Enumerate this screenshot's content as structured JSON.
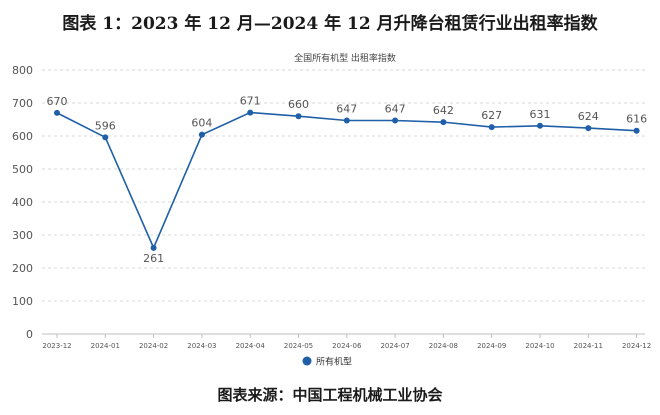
{
  "title": "图表 1：2023 年 12 月—2024 年 12 月升降台租赁行业出租率指数",
  "source": "图表来源：中国工程机械工业协会",
  "chart_data": {
    "type": "line",
    "title": "全国所有机型  出租率指数",
    "categories": [
      "2023-12",
      "2024-01",
      "2024-02",
      "2024-03",
      "2024-04",
      "2024-05",
      "2024-06",
      "2024-07",
      "2024-08",
      "2024-09",
      "2024-10",
      "2024-11",
      "2024-12"
    ],
    "series": [
      {
        "name": "所有机型",
        "values": [
          670,
          596,
          261,
          604,
          671,
          660,
          647,
          647,
          642,
          627,
          631,
          624,
          616
        ],
        "color": "#1f5fa8"
      }
    ],
    "yticks": [
      0,
      100,
      200,
      300,
      400,
      500,
      600,
      700,
      800
    ],
    "ylim": [
      0,
      800
    ],
    "grid": true,
    "legend": "bottom"
  }
}
